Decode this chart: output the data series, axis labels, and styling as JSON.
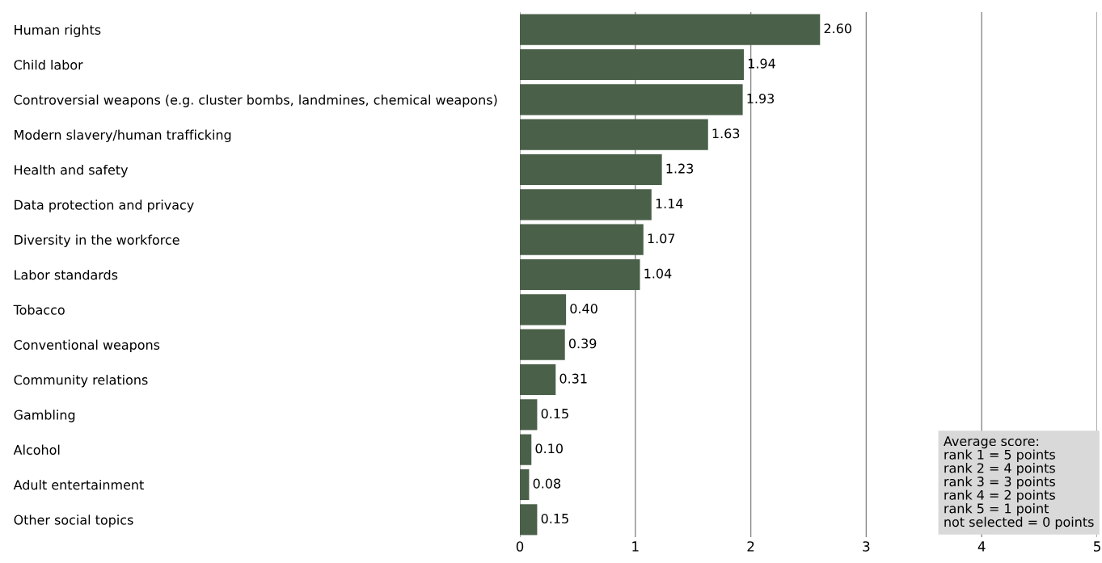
{
  "chart_data": {
    "type": "bar",
    "orientation": "horizontal",
    "categories": [
      "Human rights",
      "Child labor",
      "Controversial weapons (e.g. cluster bombs, landmines, chemical weapons)",
      "Modern slavery/human trafficking",
      "Health and safety",
      "Data protection and privacy",
      "Diversity in the workforce",
      "Labor standards",
      "Tobacco",
      "Conventional weapons",
      "Community relations",
      "Gambling",
      "Alcohol",
      "Adult entertainment",
      "Other social topics"
    ],
    "values": [
      2.6,
      1.94,
      1.93,
      1.63,
      1.23,
      1.14,
      1.07,
      1.04,
      0.4,
      0.39,
      0.31,
      0.15,
      0.1,
      0.08,
      0.15
    ],
    "value_labels": [
      "2.60",
      "1.94",
      "1.93",
      "1.63",
      "1.23",
      "1.14",
      "1.07",
      "1.04",
      "0.40",
      "0.39",
      "0.31",
      "0.15",
      "0.10",
      "0.08",
      "0.15"
    ],
    "color": "#4a6049",
    "xlim": [
      0,
      5
    ],
    "xticks": [
      0,
      1,
      2,
      3,
      4,
      5
    ],
    "grid": "x",
    "legend": false,
    "annotations": [
      "Average score:\nrank 1 = 5 points\nrank 2 = 4 points\nrank 3 = 3 points\nrank 4 = 2 points\nrank 5 = 1 point\nnot selected = 0 points"
    ]
  }
}
